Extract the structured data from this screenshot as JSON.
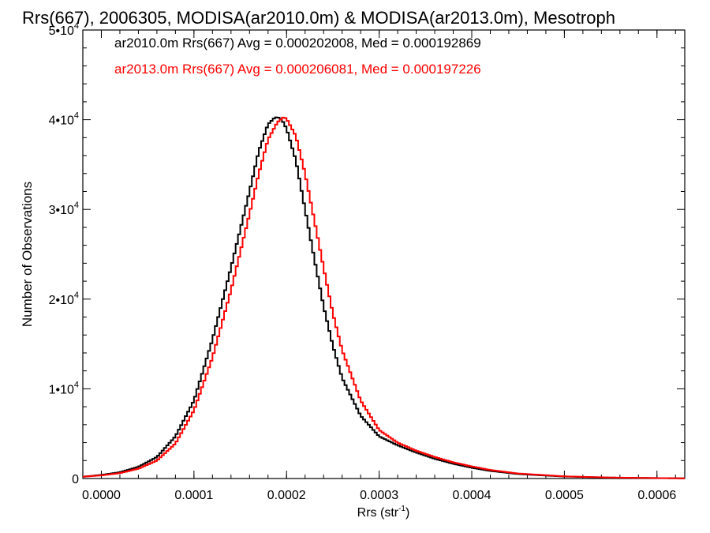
{
  "chart_data": {
    "type": "line",
    "title": "Rrs(667), 2006305, MODISA(ar2010.0m) & MODISA(ar2013.0m), Mesotroph",
    "xlabel_main": "Rrs (str",
    "xlabel_sup": "-1",
    "xlabel_end": ")",
    "ylabel": "Number of Observations",
    "xlim": [
      -2e-05,
      0.00063
    ],
    "ylim": [
      0,
      50000
    ],
    "x_ticks": [
      {
        "value": 0.0,
        "label": "0.0000"
      },
      {
        "value": 0.0001,
        "label": "0.0001"
      },
      {
        "value": 0.0002,
        "label": "0.0002"
      },
      {
        "value": 0.0003,
        "label": "0.0003"
      },
      {
        "value": 0.0004,
        "label": "0.0004"
      },
      {
        "value": 0.0005,
        "label": "0.0005"
      },
      {
        "value": 0.0006,
        "label": "0.0006"
      }
    ],
    "y_ticks": [
      {
        "value": 0,
        "base": "0",
        "exp": ""
      },
      {
        "value": 10000,
        "base": "1•10",
        "exp": "4"
      },
      {
        "value": 20000,
        "base": "2•10",
        "exp": "4"
      },
      {
        "value": 30000,
        "base": "3•10",
        "exp": "4"
      },
      {
        "value": 40000,
        "base": "4•10",
        "exp": "4"
      },
      {
        "value": 50000,
        "base": "5•10",
        "exp": "4"
      }
    ],
    "legend": [
      "ar2010.0m Rrs(667) Avg = 0.000202008, Med = 0.000192869",
      "ar2013.0m Rrs(667) Avg = 0.000206081, Med = 0.000197226"
    ],
    "series": [
      {
        "color": "#000000",
        "points": [
          [
            -2e-05,
            200
          ],
          [
            0.0,
            400
          ],
          [
            2e-05,
            700
          ],
          [
            4e-05,
            1300
          ],
          [
            6e-05,
            2400
          ],
          [
            8e-05,
            4700
          ],
          [
            0.0001,
            8700
          ],
          [
            0.00012,
            15500
          ],
          [
            0.00014,
            23500
          ],
          [
            0.00016,
            32000
          ],
          [
            0.00017,
            36500
          ],
          [
            0.00018,
            39500
          ],
          [
            0.000187,
            40200
          ],
          [
            0.00019,
            40300
          ],
          [
            0.000195,
            40000
          ],
          [
            0.0002,
            39000
          ],
          [
            0.00021,
            35500
          ],
          [
            0.00022,
            30000
          ],
          [
            0.00023,
            24500
          ],
          [
            0.00024,
            19200
          ],
          [
            0.00025,
            14800
          ],
          [
            0.00026,
            11200
          ],
          [
            0.00028,
            7000
          ],
          [
            0.0003,
            4700
          ],
          [
            0.00032,
            3700
          ],
          [
            0.00034,
            2900
          ],
          [
            0.00036,
            2200
          ],
          [
            0.00038,
            1650
          ],
          [
            0.0004,
            1200
          ],
          [
            0.00042,
            850
          ],
          [
            0.00045,
            500
          ],
          [
            0.0005,
            220
          ],
          [
            0.00055,
            100
          ],
          [
            0.0006,
            50
          ],
          [
            0.00063,
            20
          ]
        ]
      },
      {
        "color": "#ff0000",
        "points": [
          [
            -2e-05,
            200
          ],
          [
            0.0,
            350
          ],
          [
            2e-05,
            600
          ],
          [
            4e-05,
            1100
          ],
          [
            6e-05,
            2000
          ],
          [
            8e-05,
            3900
          ],
          [
            0.0001,
            7600
          ],
          [
            0.00012,
            13500
          ],
          [
            0.00014,
            21000
          ],
          [
            0.00016,
            29500
          ],
          [
            0.00017,
            34000
          ],
          [
            0.00018,
            37800
          ],
          [
            0.00019,
            39700
          ],
          [
            0.000197,
            40300
          ],
          [
            0.0002,
            40100
          ],
          [
            0.00021,
            38200
          ],
          [
            0.00022,
            34000
          ],
          [
            0.00023,
            28800
          ],
          [
            0.00024,
            23500
          ],
          [
            0.00025,
            18400
          ],
          [
            0.00026,
            14300
          ],
          [
            0.00028,
            8700
          ],
          [
            0.0003,
            5400
          ],
          [
            0.00032,
            4000
          ],
          [
            0.00034,
            3100
          ],
          [
            0.00036,
            2400
          ],
          [
            0.00038,
            1800
          ],
          [
            0.0004,
            1350
          ],
          [
            0.00042,
            950
          ],
          [
            0.00045,
            560
          ],
          [
            0.0005,
            240
          ],
          [
            0.00055,
            110
          ],
          [
            0.0006,
            50
          ],
          [
            0.00063,
            20
          ]
        ]
      }
    ]
  }
}
